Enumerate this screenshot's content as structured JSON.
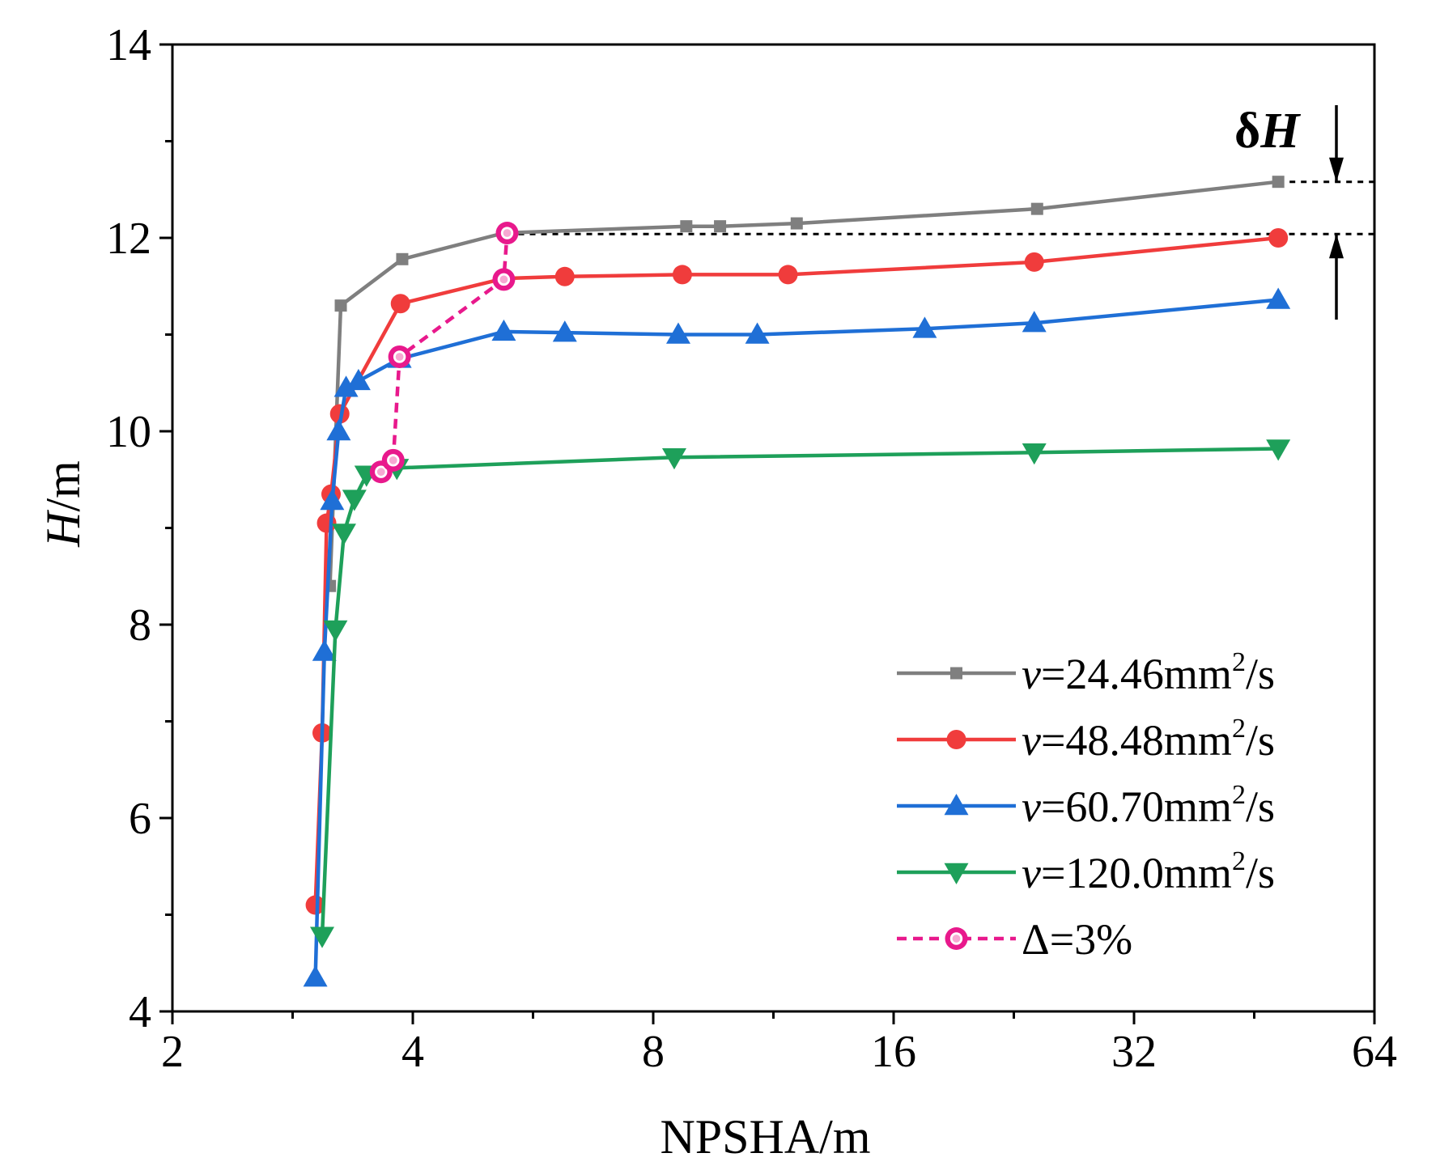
{
  "chart_data": {
    "type": "line",
    "title": "",
    "xlabel": "NPSHA/m",
    "ylabel_italic": "H",
    "ylabel_rest": "/m",
    "xscale": "log2",
    "xlim": [
      2,
      64
    ],
    "ylim": [
      4,
      14
    ],
    "xticks": [
      2,
      4,
      8,
      16,
      32,
      64
    ],
    "xtick_labels": [
      "2",
      "4",
      "8",
      "16",
      "32",
      "64"
    ],
    "yticks": [
      4,
      6,
      8,
      10,
      12,
      14
    ],
    "ytick_labels": [
      "4",
      "6",
      "8",
      "10",
      "12",
      "14"
    ],
    "legend_position": "bottom-right",
    "series": [
      {
        "name": "v=24.46mm2/s",
        "legend_prefix": "v",
        "legend_main": "=24.46mm",
        "legend_sup": "2",
        "legend_suffix": "/s",
        "color": "#7f7f7f",
        "marker": "square",
        "dashed": false,
        "x": [
          3.15,
          3.25,
          3.88,
          5.2,
          8.8,
          9.7,
          12.1,
          24.2,
          48.5
        ],
        "y": [
          8.4,
          11.3,
          11.78,
          12.05,
          12.12,
          12.12,
          12.15,
          12.3,
          12.58
        ]
      },
      {
        "name": "v=48.48mm2/s",
        "legend_prefix": "v",
        "legend_main": "=48.48mm",
        "legend_sup": "2",
        "legend_suffix": "/s",
        "color": "#f03c3c",
        "marker": "circle",
        "dashed": false,
        "x": [
          3.02,
          3.08,
          3.12,
          3.16,
          3.24,
          3.86,
          5.2,
          6.2,
          8.7,
          11.8,
          24.0,
          48.5
        ],
        "y": [
          5.1,
          6.88,
          9.05,
          9.35,
          10.18,
          11.32,
          11.58,
          11.6,
          11.62,
          11.62,
          11.75,
          12.0
        ]
      },
      {
        "name": "v=60.70mm2/s",
        "legend_prefix": "v",
        "legend_main": "=60.70mm",
        "legend_sup": "2",
        "legend_suffix": "/s",
        "color": "#1f6fd6",
        "marker": "triangle-up",
        "dashed": false,
        "x": [
          3.02,
          3.1,
          3.17,
          3.23,
          3.3,
          3.42,
          3.85,
          5.2,
          6.2,
          8.6,
          10.8,
          17.5,
          24.0,
          48.5
        ],
        "y": [
          4.35,
          7.72,
          9.28,
          10.0,
          10.45,
          10.52,
          10.75,
          11.03,
          11.02,
          11.0,
          11.0,
          11.06,
          11.12,
          11.36
        ]
      },
      {
        "name": "v=120.0mm2/s",
        "legend_prefix": "v",
        "legend_main": "=120.0mm",
        "legend_sup": "2",
        "legend_suffix": "/s",
        "color": "#1ea05a",
        "marker": "triangle-down",
        "dashed": false,
        "x": [
          3.08,
          3.2,
          3.28,
          3.38,
          3.5,
          3.82,
          8.5,
          24.0,
          48.5
        ],
        "y": [
          4.78,
          7.95,
          8.95,
          9.3,
          9.55,
          9.62,
          9.73,
          9.78,
          9.82
        ]
      },
      {
        "name": "Δ=3%",
        "legend_prefix": "",
        "legend_main": "Δ=3%",
        "legend_sup": "",
        "legend_suffix": "",
        "color": "#e8198c",
        "marker": "ball",
        "dashed": true,
        "x": [
          3.65,
          3.78,
          3.85,
          5.2,
          5.25
        ],
        "y": [
          9.58,
          9.7,
          10.77,
          11.57,
          12.05
        ]
      }
    ],
    "annotations": [
      {
        "label_main": "δ",
        "label_italic": "H",
        "upper_y": 12.58,
        "lower_y": 12.04,
        "description": "head drop between two dotted reference lines"
      }
    ]
  }
}
